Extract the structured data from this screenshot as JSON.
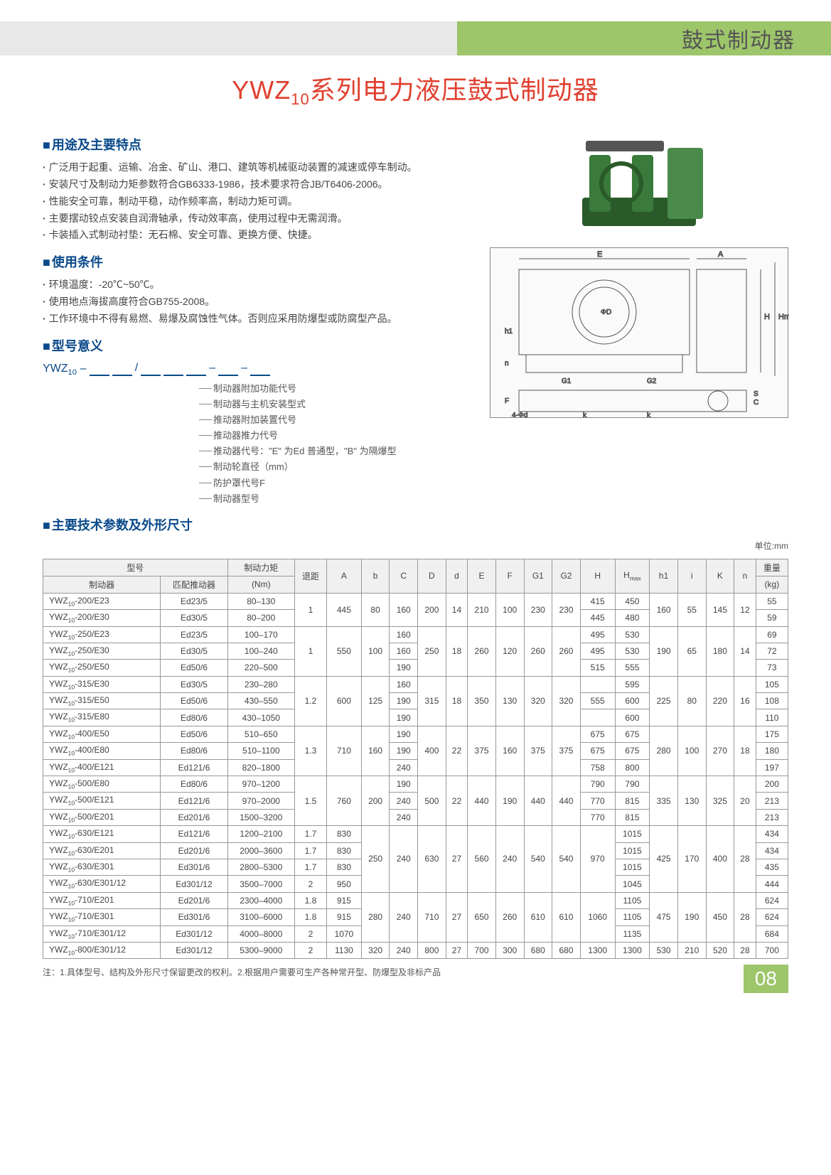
{
  "header": {
    "category": "鼓式制动器"
  },
  "title": "YWZ₁₀系列电力液压鼓式制动器",
  "sections": {
    "features": {
      "heading": "用途及主要特点",
      "items": [
        "广泛用于起重、运输、冶金、矿山、港口、建筑等机械驱动装置的减速或停车制动。",
        "安装尺寸及制动力矩参数符合GB6333-1986，技术要求符合JB/T6406-2006。",
        "性能安全可靠，制动平稳，动作频率高，制动力矩可调。",
        "主要摆动铰点安装自润滑轴承，传动效率高，使用过程中无需润滑。",
        "卡装插入式制动衬垫：无石棉、安全可靠、更换方便、快捷。"
      ]
    },
    "conditions": {
      "heading": "使用条件",
      "items": [
        "环境温度：-20℃~50℃。",
        "使用地点海拔高度符合GB755-2008。",
        "工作环境中不得有易燃、易爆及腐蚀性气体。否则应采用防爆型或防腐型产品。"
      ]
    },
    "model": {
      "heading": "型号意义",
      "root": "YWZ₁₀ –",
      "legend": [
        "制动器附加功能代号",
        "制动器与主机安装型式",
        "推动器附加装置代号",
        "推动器推力代号",
        "推动器代号：\"E\" 为Ed 普通型，\"B\" 为隔爆型",
        "制动轮直径（mm）",
        "防护罩代号F",
        "制动器型号"
      ]
    },
    "specs": {
      "heading": "主要技术参数及外形尺寸",
      "unit": "单位:mm"
    }
  },
  "diagram_labels": [
    "E",
    "A",
    "H",
    "Hmax",
    "ΦD",
    "h1",
    "n",
    "G1",
    "G2",
    "F",
    "k",
    "k",
    "4-Φd",
    "C",
    "S"
  ],
  "table": {
    "head_row1": [
      "型号",
      "制动力矩",
      "退距",
      "A",
      "b",
      "C",
      "D",
      "d",
      "E",
      "F",
      "G1",
      "G2",
      "H",
      "Hmax",
      "h1",
      "i",
      "K",
      "n",
      "重量"
    ],
    "head_row2": [
      "制动器",
      "匹配推动器",
      "(Nm)",
      "",
      "",
      "",
      "",
      "",
      "",
      "",
      "",
      "",
      "",
      "",
      "",
      "",
      "",
      "",
      "",
      "(kg)"
    ],
    "groups": [
      {
        "rows": [
          {
            "model": "YWZ₁₀-200/E23",
            "thruster": "Ed23/5",
            "torque": "80–130",
            "weight": "55",
            "H": "415",
            "Hmax": "450"
          },
          {
            "model": "YWZ₁₀-200/E30",
            "thruster": "Ed30/5",
            "torque": "80–200",
            "weight": "59",
            "H": "445",
            "Hmax": "480"
          }
        ],
        "merged": {
          "退距": "1",
          "A": "445",
          "b": "80",
          "C": "160",
          "D": "200",
          "d": "14",
          "E": "210",
          "F": "100",
          "G1": "230",
          "G2": "230",
          "h1": "160",
          "i": "55",
          "K": "145",
          "n": "12"
        }
      },
      {
        "rows": [
          {
            "model": "YWZ₁₀-250/E23",
            "thruster": "Ed23/5",
            "torque": "100–170",
            "weight": "69",
            "C": "160",
            "H": "495",
            "Hmax": "530"
          },
          {
            "model": "YWZ₁₀-250/E30",
            "thruster": "Ed30/5",
            "torque": "100–240",
            "weight": "72",
            "C": "160",
            "H": "495",
            "Hmax": "530"
          },
          {
            "model": "YWZ₁₀-250/E50",
            "thruster": "Ed50/6",
            "torque": "220–500",
            "weight": "73",
            "C": "190",
            "H": "515",
            "Hmax": "555"
          }
        ],
        "merged": {
          "退距": "1",
          "A": "550",
          "b": "100",
          "D": "250",
          "d": "18",
          "E": "260",
          "F": "120",
          "G1": "260",
          "G2": "260",
          "h1": "190",
          "i": "65",
          "K": "180",
          "n": "14"
        }
      },
      {
        "rows": [
          {
            "model": "YWZ₁₀-315/E30",
            "thruster": "Ed30/5",
            "torque": "230–280",
            "weight": "105",
            "C": "160",
            "Hmax": "595"
          },
          {
            "model": "YWZ₁₀-315/E50",
            "thruster": "Ed50/6",
            "torque": "430–550",
            "weight": "108",
            "C": "190",
            "H": "555",
            "Hmax": "600"
          },
          {
            "model": "YWZ₁₀-315/E80",
            "thruster": "Ed80/6",
            "torque": "430–1050",
            "weight": "110",
            "C": "190",
            "Hmax": "600"
          }
        ],
        "merged": {
          "退距": "1.2",
          "A": "600",
          "b": "125",
          "D": "315",
          "d": "18",
          "E": "350",
          "F": "130",
          "G1": "320",
          "G2": "320",
          "h1": "225",
          "i": "80",
          "K": "220",
          "n": "16"
        }
      },
      {
        "rows": [
          {
            "model": "YWZ₁₀-400/E50",
            "thruster": "Ed50/6",
            "torque": "510–650",
            "weight": "175",
            "C": "190",
            "H": "675",
            "Hmax": "675"
          },
          {
            "model": "YWZ₁₀-400/E80",
            "thruster": "Ed80/6",
            "torque": "510–1100",
            "weight": "180",
            "C": "190",
            "H": "675",
            "Hmax": "675"
          },
          {
            "model": "YWZ₁₀-400/E121",
            "thruster": "Ed121/6",
            "torque": "820–1800",
            "weight": "197",
            "C": "240",
            "H": "758",
            "Hmax": "800"
          }
        ],
        "merged": {
          "退距": "1.3",
          "A": "710",
          "b": "160",
          "D": "400",
          "d": "22",
          "E": "375",
          "F": "160",
          "G1": "375",
          "G2": "375",
          "h1": "280",
          "i": "100",
          "K": "270",
          "n": "18"
        }
      },
      {
        "rows": [
          {
            "model": "YWZ₁₀-500/E80",
            "thruster": "Ed80/6",
            "torque": "970–1200",
            "weight": "200",
            "C": "190",
            "H": "790",
            "Hmax": "790"
          },
          {
            "model": "YWZ₁₀-500/E121",
            "thruster": "Ed121/6",
            "torque": "970–2000",
            "weight": "213",
            "C": "240",
            "H": "770",
            "Hmax": "815"
          },
          {
            "model": "YWZ₁₀-500/E201",
            "thruster": "Ed201/6",
            "torque": "1500–3200",
            "weight": "213",
            "C": "240",
            "H": "770",
            "Hmax": "815"
          }
        ],
        "merged": {
          "退距": "1.5",
          "A": "760",
          "b": "200",
          "D": "500",
          "d": "22",
          "E": "440",
          "F": "190",
          "G1": "440",
          "G2": "440",
          "h1": "335",
          "i": "130",
          "K": "325",
          "n": "20"
        }
      },
      {
        "rows": [
          {
            "model": "YWZ₁₀-630/E121",
            "thruster": "Ed121/6",
            "torque": "1200–2100",
            "weight": "434",
            "退距": "1.7",
            "A": "830",
            "Hmax": "1015"
          },
          {
            "model": "YWZ₁₀-630/E201",
            "thruster": "Ed201/6",
            "torque": "2000–3600",
            "weight": "434",
            "退距": "1.7",
            "A": "830",
            "Hmax": "1015"
          },
          {
            "model": "YWZ₁₀-630/E301",
            "thruster": "Ed301/6",
            "torque": "2800–5300",
            "weight": "435",
            "退距": "1.7",
            "A": "830",
            "Hmax": "1015"
          },
          {
            "model": "YWZ₁₀-630/E301/12",
            "thruster": "Ed301/12",
            "torque": "3500–7000",
            "weight": "444",
            "退距": "2",
            "A": "950",
            "Hmax": "1045"
          }
        ],
        "merged": {
          "b": "250",
          "C": "240",
          "D": "630",
          "d": "27",
          "E": "560",
          "F": "240",
          "G1": "540",
          "G2": "540",
          "H": "970",
          "h1": "425",
          "i": "170",
          "K": "400",
          "n": "28"
        }
      },
      {
        "rows": [
          {
            "model": "YWZ₁₀-710/E201",
            "thruster": "Ed201/6",
            "torque": "2300–4000",
            "weight": "624",
            "退距": "1.8",
            "A": "915",
            "Hmax": "1105"
          },
          {
            "model": "YWZ₁₀-710/E301",
            "thruster": "Ed301/6",
            "torque": "3100–6000",
            "weight": "624",
            "退距": "1.8",
            "A": "915",
            "Hmax": "1105"
          },
          {
            "model": "YWZ₁₀-710/E301/12",
            "thruster": "Ed301/12",
            "torque": "4000–8000",
            "weight": "684",
            "退距": "2",
            "A": "1070",
            "Hmax": "1135"
          }
        ],
        "merged": {
          "b": "280",
          "C": "240",
          "D": "710",
          "d": "27",
          "E": "650",
          "F": "260",
          "G1": "610",
          "G2": "610",
          "H": "1060",
          "h1": "475",
          "i": "190",
          "K": "450",
          "n": "28"
        }
      },
      {
        "rows": [
          {
            "model": "YWZ₁₀-800/E301/12",
            "thruster": "Ed301/12",
            "torque": "5300–9000",
            "weight": "700",
            "退距": "2",
            "A": "1130",
            "b": "320",
            "C": "240",
            "D": "800",
            "d": "27",
            "E": "700",
            "F": "300",
            "G1": "680",
            "G2": "680",
            "H": "1300",
            "Hmax": "1300",
            "h1": "530",
            "i": "210",
            "K": "520",
            "n": "28"
          }
        ],
        "merged": {}
      }
    ]
  },
  "note": "注：1.具体型号、结构及外形尺寸保留更改的权利。2.根据用户需要可生产各种常开型、防爆型及非标产品",
  "page_number": "08",
  "colors": {
    "primary_red": "#e04030",
    "primary_blue": "#0a4a8a",
    "accent_green": "#9dc56a",
    "text": "#444444",
    "border": "#999999"
  }
}
